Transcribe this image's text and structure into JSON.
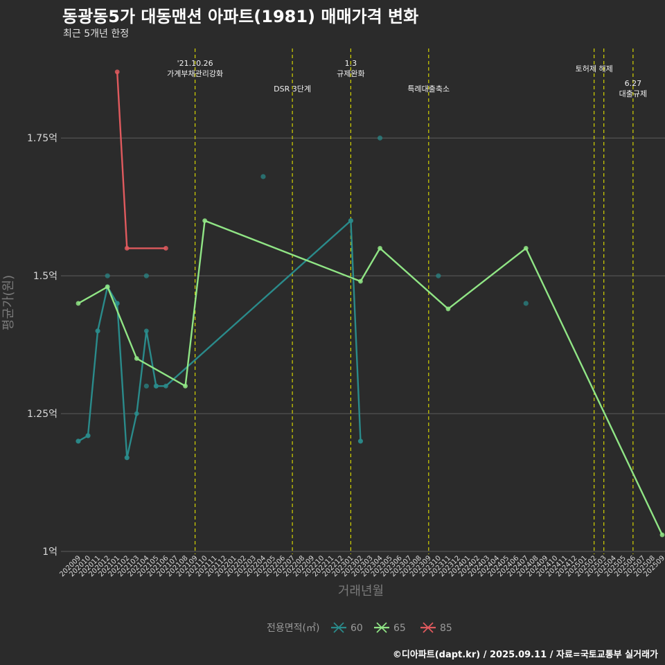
{
  "chart_data": {
    "type": "line",
    "title": "동광동5가 대동맨션 아파트(1981) 매매가격 변화",
    "subtitle": "최근 5개년 한정",
    "xlabel": "거래년월",
    "ylabel": "평균가(원)",
    "caption": "©디아파트(dapt.kr) / 2025.09.11 / 자료=국토교통부 실거래가",
    "legend_title": "전용면적(㎡)",
    "legend_position": "bottom",
    "ylim": [
      0.995,
      1.925
    ],
    "yticks": [
      {
        "value": 1.0,
        "label": "1억"
      },
      {
        "value": 1.25,
        "label": "1.25억"
      },
      {
        "value": 1.5,
        "label": "1.5억"
      },
      {
        "value": 1.75,
        "label": "1.75억"
      }
    ],
    "categories": [
      "202009",
      "202010",
      "202011",
      "202012",
      "202101",
      "202102",
      "202103",
      "202104",
      "202105",
      "202106",
      "202107",
      "202108",
      "202109",
      "202110",
      "202111",
      "202112",
      "202201",
      "202202",
      "202203",
      "202204",
      "202205",
      "202206",
      "202207",
      "202208",
      "202209",
      "202210",
      "202211",
      "202212",
      "202301",
      "202302",
      "202303",
      "202304",
      "202305",
      "202306",
      "202307",
      "202308",
      "202309",
      "202310",
      "202311",
      "202312",
      "202401",
      "202402",
      "202403",
      "202404",
      "202405",
      "202406",
      "202407",
      "202408",
      "202409",
      "202410",
      "202411",
      "202412",
      "202501",
      "202502",
      "202503",
      "202504",
      "202505",
      "202506",
      "202507",
      "202508",
      "202509"
    ],
    "series": [
      {
        "name": "60",
        "color": "#2a8b8b",
        "points": [
          [
            "202009",
            1.2
          ],
          [
            "202010",
            1.21
          ],
          [
            "202011",
            1.4
          ],
          [
            "202012",
            1.48
          ],
          [
            "202101",
            1.45
          ],
          [
            "202102",
            1.17
          ],
          [
            "202103",
            1.25
          ],
          [
            "202104",
            1.4
          ],
          [
            "202105",
            1.3
          ],
          [
            "202106",
            1.3
          ],
          [
            "202301",
            1.6
          ],
          [
            "202302",
            1.2
          ]
        ],
        "scatter": [
          [
            "202009",
            1.2
          ],
          [
            "202010",
            1.21
          ],
          [
            "202011",
            1.4
          ],
          [
            "202012",
            1.5
          ],
          [
            "202101",
            1.45
          ],
          [
            "202102",
            1.17
          ],
          [
            "202104",
            1.3
          ],
          [
            "202104",
            1.5
          ],
          [
            "202105",
            1.3
          ],
          [
            "202204",
            1.68
          ],
          [
            "202304",
            1.75
          ],
          [
            "202310",
            1.5
          ],
          [
            "202407",
            1.45
          ],
          [
            "202301",
            1.6
          ],
          [
            "202302",
            1.2
          ]
        ]
      },
      {
        "name": "65",
        "color": "#90e585",
        "points": [
          [
            "202009",
            1.45
          ],
          [
            "202012",
            1.48
          ],
          [
            "202103",
            1.35
          ],
          [
            "202108",
            1.3
          ],
          [
            "202110",
            1.6
          ],
          [
            "202302",
            1.49
          ],
          [
            "202304",
            1.55
          ],
          [
            "202311",
            1.44
          ],
          [
            "202407",
            1.55
          ],
          [
            "202509",
            1.03
          ]
        ]
      },
      {
        "name": "85",
        "color": "#e05a5e",
        "points": [
          [
            "202101",
            1.87
          ],
          [
            "202102",
            1.55
          ],
          [
            "202106",
            1.55
          ]
        ]
      }
    ],
    "events": [
      {
        "month": "202109",
        "lines": [
          "'21.10.26",
          "가계부채관리강화"
        ],
        "label_row": "top"
      },
      {
        "month": "202207",
        "lines": [
          "DSR 3단계"
        ],
        "label_row": "low"
      },
      {
        "month": "202301",
        "lines": [
          "1.3",
          "규제완화"
        ],
        "label_row": "top"
      },
      {
        "month": "202309",
        "lines": [
          "특례대출축소"
        ],
        "label_row": "low"
      },
      {
        "month": "202502",
        "lines": [
          "토허제 해제"
        ],
        "label_row": "mid"
      },
      {
        "month": "202503",
        "lines": [],
        "label_row": "mid"
      },
      {
        "month": "202506",
        "lines": [
          "6.27",
          "대출규제"
        ],
        "label_row": "low"
      }
    ],
    "event_line_color": "#d4d400",
    "grid": true
  }
}
